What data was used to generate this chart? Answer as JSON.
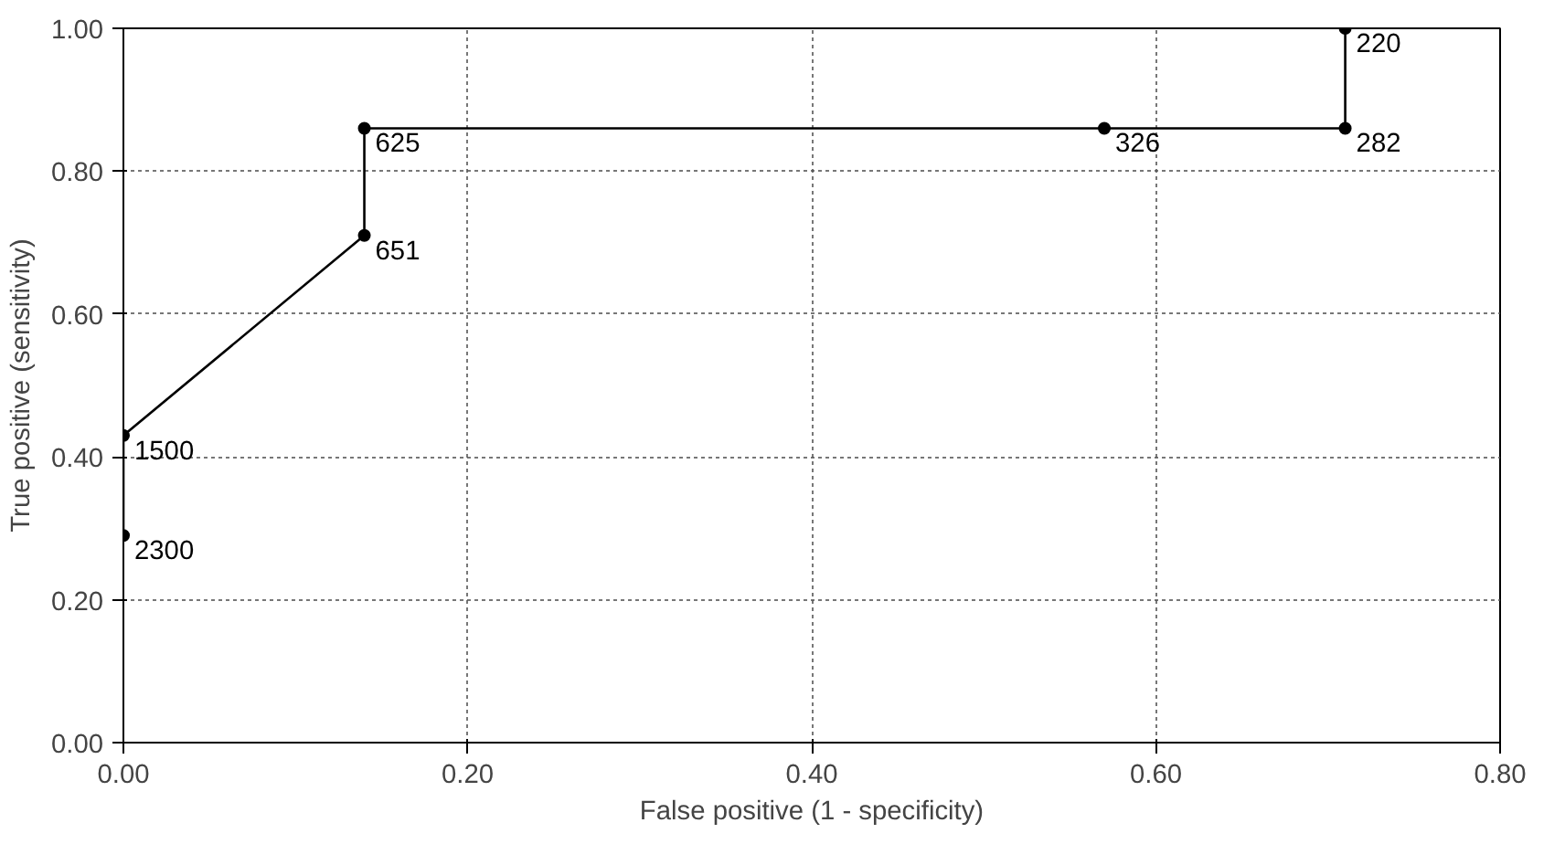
{
  "chart_data": {
    "type": "line",
    "xlabel": "False positive (1 - specificity)",
    "ylabel": "True positive (sensitivity)",
    "x": [
      0,
      0,
      0.14,
      0.14,
      0.57,
      0.71,
      0.71
    ],
    "series": [
      {
        "color": "#000000",
        "values": [
          0.29,
          0.43,
          0.71,
          0.86,
          0.86,
          0.86,
          1.0
        ]
      }
    ],
    "marker": "circle",
    "line_style": "solid",
    "grid": true,
    "xlim": [
      0,
      0.8
    ],
    "ylim": [
      0,
      1
    ],
    "xticks": [
      {
        "value": 0,
        "label": "0.00"
      },
      {
        "value": 0.2,
        "label": "0.20"
      },
      {
        "value": 0.4,
        "label": "0.40"
      },
      {
        "value": 0.6,
        "label": "0.60"
      },
      {
        "value": 0.8,
        "label": "0.80"
      }
    ],
    "yticks": [
      {
        "value": 0,
        "label": "0.00"
      },
      {
        "value": 0.2,
        "label": "0.20"
      },
      {
        "value": 0.4,
        "label": "0.40"
      },
      {
        "value": 0.6,
        "label": "0.60"
      },
      {
        "value": 0.8,
        "label": "0.80"
      },
      {
        "value": 1.0,
        "label": "1.00"
      }
    ],
    "annotations": [
      {
        "text": "2300",
        "x": 0,
        "y": 0.29
      },
      {
        "text": "1500",
        "x": 0,
        "y": 0.43
      },
      {
        "text": "651",
        "x": 0.14,
        "y": 0.71
      },
      {
        "text": "625",
        "x": 0.14,
        "y": 0.86
      },
      {
        "text": "326",
        "x": 0.57,
        "y": 0.86
      },
      {
        "text": "282",
        "x": 0.71,
        "y": 0.86
      },
      {
        "text": "220",
        "x": 0.71,
        "y": 1.0
      }
    ]
  }
}
